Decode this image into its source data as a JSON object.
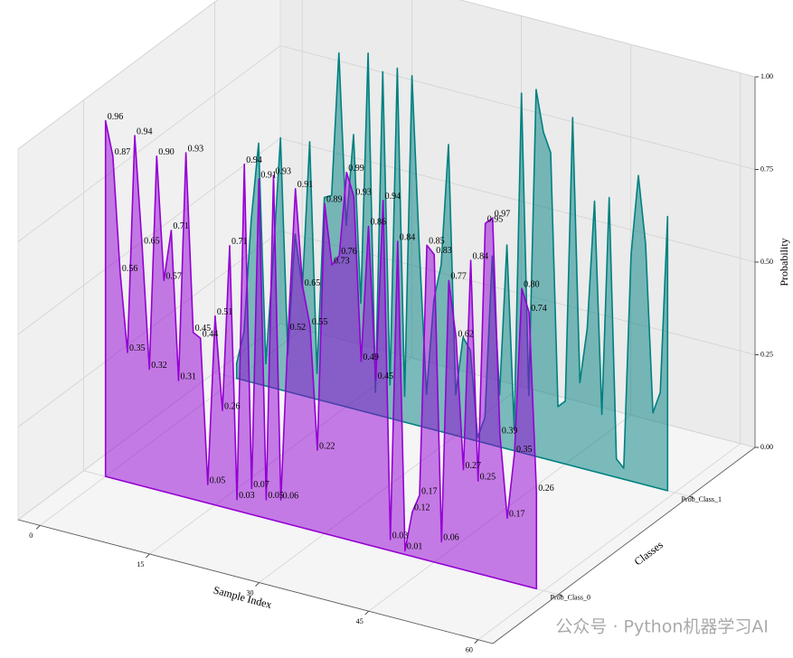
{
  "chart_data": {
    "type": "polygon3d",
    "x_label": "Sample Index",
    "y_label": "Classes",
    "z_label": "Probability",
    "watermark": "公众号 · Python机器学习AI",
    "x": [
      0,
      1,
      2,
      3,
      4,
      5,
      6,
      7,
      8,
      9,
      10,
      11,
      12,
      13,
      14,
      15,
      16,
      17,
      18,
      19,
      20,
      21,
      22,
      23,
      24,
      25,
      26,
      27,
      28,
      29,
      30,
      31,
      32,
      33,
      34,
      35,
      36,
      37,
      38,
      39,
      40,
      41,
      42,
      43,
      44,
      45,
      46,
      47,
      48,
      49,
      50,
      51,
      52,
      53,
      54,
      55,
      56,
      57,
      58,
      59
    ],
    "categories": [
      "Prob_Class_0",
      "Prob_Class_1"
    ],
    "series": [
      {
        "name": "Prob_Class_1",
        "color": "#008080",
        "y": 1,
        "values": [
          0.04,
          0.13,
          0.44,
          0.65,
          0.06,
          0.35,
          0.68,
          0.1,
          0.43,
          0.29,
          0.69,
          0.07,
          0.55,
          0.56,
          0.95,
          0.49,
          0.74,
          0.29,
          0.97,
          0.06,
          0.93,
          0.09,
          0.95,
          0.07,
          0.94,
          0.48,
          0.09,
          0.35,
          0.45,
          0.78,
          0.11,
          0.27,
          0.24,
          0.01,
          0.07,
          0.51,
          0.14,
          0.55,
          0.06,
          0.97,
          0.16,
          0.99,
          0.88,
          0.83,
          0.15,
          0.17,
          0.94,
          0.23,
          0.38,
          0.73,
          0.16,
          0.75,
          0.05,
          0.03,
          0.61,
          0.83,
          0.65,
          0.2,
          0.26,
          0.74
        ]
      },
      {
        "name": "Prob_Class_0",
        "color": "#9400d3",
        "y": 0,
        "values": [
          0.96,
          0.87,
          0.56,
          0.35,
          0.94,
          0.65,
          0.32,
          0.9,
          0.57,
          0.71,
          0.31,
          0.93,
          0.45,
          0.44,
          0.05,
          0.51,
          0.26,
          0.71,
          0.03,
          0.94,
          0.07,
          0.91,
          0.05,
          0.93,
          0.06,
          0.52,
          0.91,
          0.65,
          0.55,
          0.22,
          0.89,
          0.73,
          0.76,
          0.99,
          0.93,
          0.49,
          0.86,
          0.45,
          0.94,
          0.03,
          0.84,
          0.01,
          0.12,
          0.17,
          0.85,
          0.83,
          0.06,
          0.77,
          0.62,
          0.27,
          0.84,
          0.25,
          0.95,
          0.97,
          0.39,
          0.17,
          0.35,
          0.8,
          0.74,
          0.26
        ],
        "value_labels": [
          "0.96",
          "0.87",
          "0.56",
          "0.35",
          "0.94",
          "0.65",
          "0.32",
          "0.90",
          "0.57",
          "0.71",
          "0.31",
          "0.93",
          "0.45",
          "0.44",
          "0.05",
          "0.51",
          "0.26",
          "0.71",
          "0.03",
          "0.94",
          "0.07",
          "0.91",
          "0.05",
          "0.93",
          "0.06",
          "0.52",
          "0.91",
          "0.65",
          "0.55",
          "0.22",
          "0.89",
          "0.73",
          "0.76",
          "0.99",
          "0.93",
          "0.49",
          "0.86",
          "0.45",
          "0.94",
          "0.03",
          "0.84",
          "0.01",
          "0.12",
          "0.17",
          "0.85",
          "0.83",
          "0.06",
          "0.77",
          "0.62",
          "0.27",
          "0.84",
          "0.25",
          "0.95",
          "0.97",
          "0.39",
          "0.17",
          "0.35",
          "0.80",
          "0.74",
          "0.26"
        ]
      }
    ],
    "xlim": [
      -3,
      62
    ],
    "xticks": [
      0,
      15,
      30,
      45,
      60
    ],
    "ylim": [
      -0.5,
      1.5
    ],
    "yticks": [
      0,
      1
    ],
    "zlim": [
      0,
      1
    ],
    "zticks": [
      {
        "value": 0,
        "label": "0.00"
      },
      {
        "value": 0.25,
        "label": "0.25"
      },
      {
        "value": 0.5,
        "label": "0.50"
      },
      {
        "value": 0.75,
        "label": "0.75"
      },
      {
        "value": 1,
        "label": "1.00"
      }
    ],
    "grid": true
  }
}
